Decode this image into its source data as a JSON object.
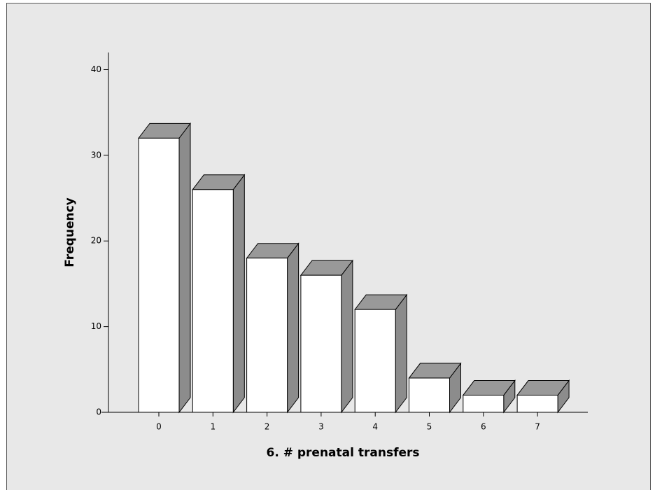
{
  "chart_data": {
    "type": "bar3d",
    "x_label": "6. # prenatal transfers",
    "y_label": "Frequency",
    "categories": [
      "0",
      "1",
      "2",
      "3",
      "4",
      "5",
      "6",
      "7"
    ],
    "values": [
      32,
      26,
      18,
      16,
      12,
      4,
      2,
      2
    ],
    "color": "#ffffff",
    "side_color": "#8c8c8c",
    "top_color": "#999999",
    "ylim": [
      0,
      42
    ],
    "yticks": [
      0,
      10,
      20,
      30,
      40
    ],
    "grid": false
  }
}
